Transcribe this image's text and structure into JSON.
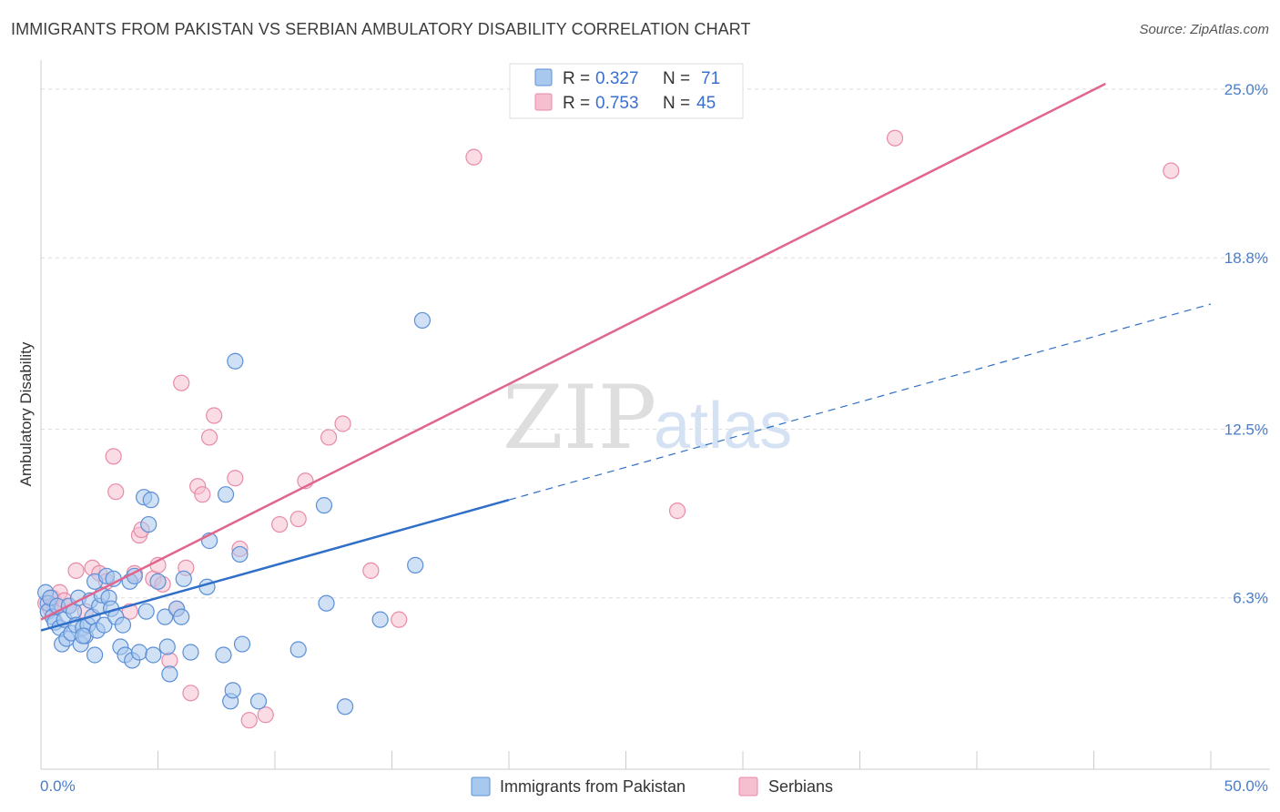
{
  "title": "IMMIGRANTS FROM PAKISTAN VS SERBIAN AMBULATORY DISABILITY CORRELATION CHART",
  "source": "Source: ZipAtlas.com",
  "watermark": {
    "zip": "ZIP",
    "atlas": "atlas"
  },
  "colors": {
    "blue_fill": "#a9c8ee",
    "blue_stroke": "#5b8fd6",
    "blue_line": "#2f6fc8",
    "pink_fill": "#f5bfd0",
    "pink_stroke": "#e88aa8",
    "pink_line": "#e0668e",
    "grid": "#dddddd",
    "tick_text": "#4a7cc9"
  },
  "legend": {
    "entries": [
      {
        "r_label": "R = ",
        "r_value": "0.327",
        "n_label": "N = ",
        "n_value": "71"
      },
      {
        "r_label": "R = ",
        "r_value": "0.753",
        "n_label": "N = ",
        "n_value": "45"
      }
    ]
  },
  "chart_data": {
    "type": "scatter",
    "title": "IMMIGRANTS FROM PAKISTAN VS SERBIAN AMBULATORY DISABILITY CORRELATION CHART",
    "xlabel": "",
    "ylabel": "Ambulatory Disability",
    "xlim": [
      0,
      50
    ],
    "ylim": [
      0,
      25.6
    ],
    "x_tick_labels": [
      "0.0%",
      "50.0%"
    ],
    "y_ticks": [
      6.3,
      12.5,
      18.8,
      25.0
    ],
    "y_tick_labels": [
      "6.3%",
      "12.5%",
      "18.8%",
      "25.0%"
    ],
    "grid": true,
    "legend_position": "top-center",
    "series": [
      {
        "name": "Immigrants from Pakistan",
        "color": "#a9c8ee",
        "trend": {
          "x0": 0,
          "y0": 5.1,
          "x1": 20,
          "y1": 9.9,
          "dashed_to_x": 50,
          "dashed_to_y": 17.1
        },
        "points": [
          [
            0.2,
            6.5
          ],
          [
            0.3,
            6.1
          ],
          [
            0.3,
            5.8
          ],
          [
            0.4,
            6.3
          ],
          [
            0.5,
            5.6
          ],
          [
            0.6,
            5.4
          ],
          [
            0.7,
            6.0
          ],
          [
            0.8,
            5.2
          ],
          [
            0.9,
            4.6
          ],
          [
            1.0,
            5.5
          ],
          [
            1.1,
            4.8
          ],
          [
            1.2,
            6.0
          ],
          [
            1.3,
            5.0
          ],
          [
            1.4,
            5.8
          ],
          [
            1.5,
            5.3
          ],
          [
            1.6,
            6.3
          ],
          [
            1.7,
            4.6
          ],
          [
            1.8,
            5.2
          ],
          [
            1.9,
            4.9
          ],
          [
            2.0,
            5.3
          ],
          [
            2.1,
            6.2
          ],
          [
            2.2,
            5.6
          ],
          [
            2.3,
            6.9
          ],
          [
            2.4,
            5.1
          ],
          [
            2.5,
            6.0
          ],
          [
            2.6,
            6.4
          ],
          [
            2.7,
            5.3
          ],
          [
            2.8,
            7.1
          ],
          [
            2.9,
            6.3
          ],
          [
            3.0,
            5.9
          ],
          [
            3.1,
            7.0
          ],
          [
            3.2,
            5.6
          ],
          [
            3.4,
            4.5
          ],
          [
            3.6,
            4.2
          ],
          [
            3.8,
            6.9
          ],
          [
            3.9,
            4.0
          ],
          [
            4.0,
            7.1
          ],
          [
            4.2,
            4.3
          ],
          [
            4.4,
            10.0
          ],
          [
            4.5,
            5.8
          ],
          [
            4.6,
            9.0
          ],
          [
            4.7,
            9.9
          ],
          [
            4.8,
            4.2
          ],
          [
            5.0,
            6.9
          ],
          [
            5.3,
            5.6
          ],
          [
            5.4,
            4.5
          ],
          [
            5.5,
            3.5
          ],
          [
            5.8,
            5.9
          ],
          [
            6.0,
            5.6
          ],
          [
            6.1,
            7.0
          ],
          [
            6.4,
            4.3
          ],
          [
            7.1,
            6.7
          ],
          [
            7.2,
            8.4
          ],
          [
            7.8,
            4.2
          ],
          [
            7.9,
            10.1
          ],
          [
            8.1,
            2.5
          ],
          [
            8.2,
            2.9
          ],
          [
            8.3,
            15.0
          ],
          [
            8.5,
            7.9
          ],
          [
            8.6,
            4.6
          ],
          [
            2.3,
            4.2
          ],
          [
            3.5,
            5.3
          ],
          [
            1.8,
            4.9
          ],
          [
            9.3,
            2.5
          ],
          [
            11.0,
            4.4
          ],
          [
            12.1,
            9.7
          ],
          [
            12.2,
            6.1
          ],
          [
            13.0,
            2.3
          ],
          [
            14.5,
            5.5
          ],
          [
            16.0,
            7.5
          ],
          [
            16.3,
            16.5
          ]
        ]
      },
      {
        "name": "Serbians",
        "color": "#f5bfd0",
        "trend": {
          "x0": 0,
          "y0": 5.5,
          "x1": 45.5,
          "y1": 25.2
        },
        "points": [
          [
            0.2,
            6.1
          ],
          [
            0.4,
            5.9
          ],
          [
            0.5,
            6.3
          ],
          [
            0.6,
            6.0
          ],
          [
            0.8,
            6.5
          ],
          [
            1.0,
            6.2
          ],
          [
            1.2,
            6.0
          ],
          [
            1.5,
            7.3
          ],
          [
            1.9,
            5.8
          ],
          [
            2.2,
            7.4
          ],
          [
            2.5,
            7.2
          ],
          [
            2.8,
            6.9
          ],
          [
            3.1,
            11.5
          ],
          [
            3.2,
            10.2
          ],
          [
            3.8,
            5.8
          ],
          [
            4.0,
            7.2
          ],
          [
            4.2,
            8.6
          ],
          [
            4.3,
            8.8
          ],
          [
            4.8,
            7.0
          ],
          [
            5.0,
            7.5
          ],
          [
            5.2,
            6.8
          ],
          [
            5.5,
            4.0
          ],
          [
            5.8,
            5.9
          ],
          [
            6.0,
            14.2
          ],
          [
            6.2,
            7.4
          ],
          [
            6.4,
            2.8
          ],
          [
            6.7,
            10.4
          ],
          [
            6.9,
            10.1
          ],
          [
            7.2,
            12.2
          ],
          [
            7.4,
            13.0
          ],
          [
            8.3,
            10.7
          ],
          [
            8.5,
            8.1
          ],
          [
            8.9,
            1.8
          ],
          [
            9.6,
            2.0
          ],
          [
            10.2,
            9.0
          ],
          [
            11.0,
            9.2
          ],
          [
            11.3,
            10.6
          ],
          [
            12.3,
            12.2
          ],
          [
            12.9,
            12.7
          ],
          [
            14.1,
            7.3
          ],
          [
            15.3,
            5.5
          ],
          [
            18.5,
            22.5
          ],
          [
            27.2,
            9.5
          ],
          [
            36.5,
            23.2
          ],
          [
            48.3,
            22.0
          ]
        ]
      }
    ]
  }
}
